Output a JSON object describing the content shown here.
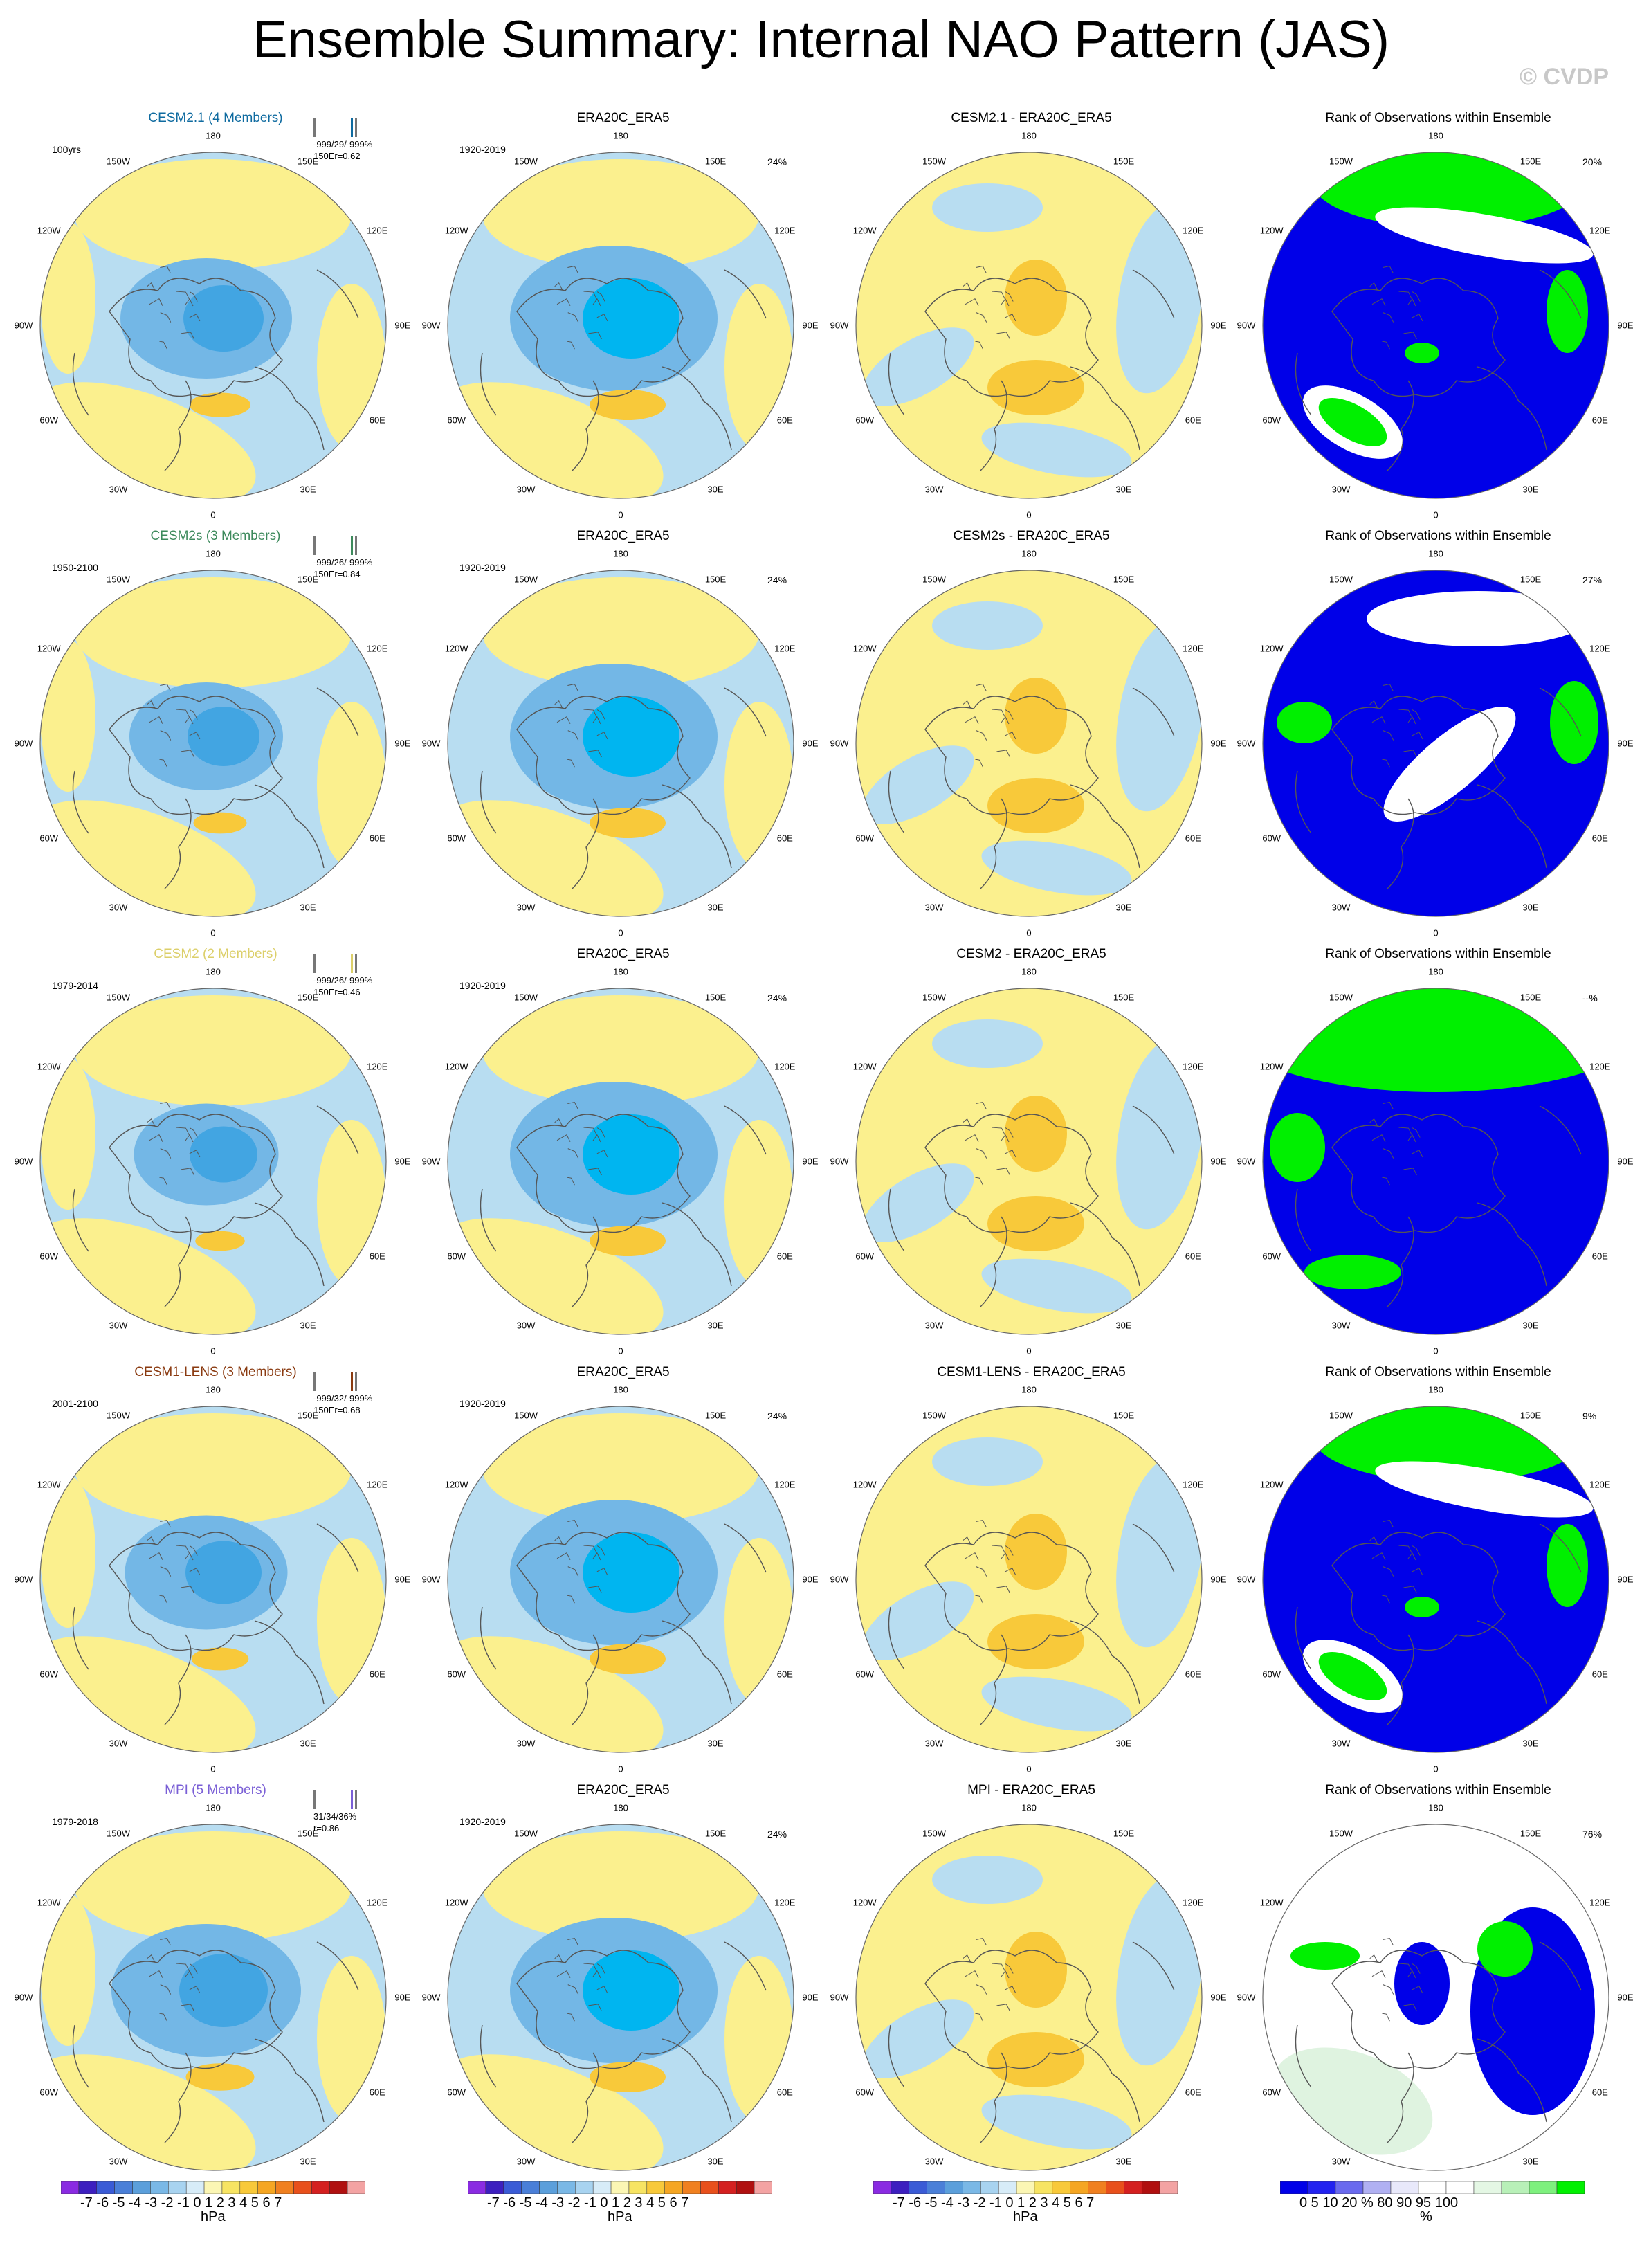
{
  "page": {
    "title": "Ensemble Summary: Internal NAO Pattern (JAS)",
    "copyright": "© CVDP"
  },
  "colors": {
    "pos1": "#fbf08e",
    "pos2": "#f8c93a",
    "neg1": "#b8ddf1",
    "neg2": "#73b7e6",
    "neg3": "#42a5e2",
    "neg4": "#00b5f0",
    "rank_blue": "#0000e8",
    "rank_green": "#00f000",
    "rank_white": "#ffffff",
    "rank_pale": "#dff3e0",
    "coast": "#555555",
    "model_cesm21": "#0f6ba0",
    "model_cesm2s": "#3d8a5c",
    "model_cesm2": "#dccf6a",
    "model_cesm1": "#8a3a10",
    "model_mpi": "#7a5fd6"
  },
  "lon_labels": [
    "180",
    "150E",
    "120E",
    "90E",
    "60E",
    "30E",
    "0",
    "30W",
    "60W",
    "90W",
    "120W",
    "150W"
  ],
  "rows": [
    {
      "model": "CESM2.1 (4 Members)",
      "years": "100yrs",
      "stats": "-999/29/-999%",
      "r": "150Er=0.62",
      "color_key": "model_cesm21",
      "diff_title": "CESM2.1 - ERA20C_ERA5",
      "rank_pct": "20%",
      "mean_blob": 0.8,
      "rank_style": "blue_green"
    },
    {
      "model": "CESM2s (3 Members)",
      "years": "1950-2100",
      "stats": "-999/26/-999%",
      "r": "150Er=0.84",
      "color_key": "model_cesm2s",
      "diff_title": "CESM2s - ERA20C_ERA5",
      "rank_pct": "27%",
      "mean_blob": 0.7,
      "rank_style": "blue_white"
    },
    {
      "model": "CESM2 (2 Members)",
      "years": "1979-2014",
      "stats": "-999/26/-999%",
      "r": "150Er=0.46",
      "color_key": "model_cesm2",
      "diff_title": "CESM2 - ERA20C_ERA5",
      "rank_pct": "--%",
      "mean_blob": 0.65,
      "rank_style": "green_cap"
    },
    {
      "model": "CESM1-LENS (3 Members)",
      "years": "2001-2100",
      "stats": "-999/32/-999%",
      "r": "150Er=0.68",
      "color_key": "model_cesm1",
      "diff_title": "CESM1-LENS - ERA20C_ERA5",
      "rank_pct": "9%",
      "mean_blob": 0.75,
      "rank_style": "blue_green"
    },
    {
      "model": "MPI (5 Members)",
      "years": "1979-2018",
      "stats": "31/34/36%",
      "r": "r=0.86",
      "color_key": "model_mpi",
      "diff_title": "MPI - ERA20C_ERA5",
      "rank_pct": "76%",
      "mean_blob": 0.9,
      "rank_style": "mixed"
    }
  ],
  "obs": {
    "title": "ERA20C_ERA5",
    "years": "1920-2019",
    "pct": "24%"
  },
  "rank_title": "Rank of Observations within Ensemble",
  "colorbar_hpa": {
    "ticks": "-7 -6 -5 -4 -3 -2 -1 0 1 2 3 4 5 6 7",
    "unit": "hPa",
    "colors": [
      "#8a2be2",
      "#3d1fbf",
      "#3a5bd6",
      "#4a7fd8",
      "#5b9fdb",
      "#7ab8e6",
      "#a8d3f0",
      "#d7ecf8",
      "#fbf6b4",
      "#f7e463",
      "#f8c93a",
      "#f5a623",
      "#f08020",
      "#e8501c",
      "#d42020",
      "#b01010",
      "#f3a3a3"
    ]
  },
  "colorbar_rank": {
    "ticks": "0   5  10        20       %       80       90  95 100",
    "unit": "%",
    "colors": [
      "#0000e8",
      "#2222f0",
      "#6a6aee",
      "#b0b0f2",
      "#e8e8fa",
      "#ffffff",
      "#ffffff",
      "#e4f7e4",
      "#b8f0b8",
      "#7ef07e",
      "#00f000"
    ]
  }
}
